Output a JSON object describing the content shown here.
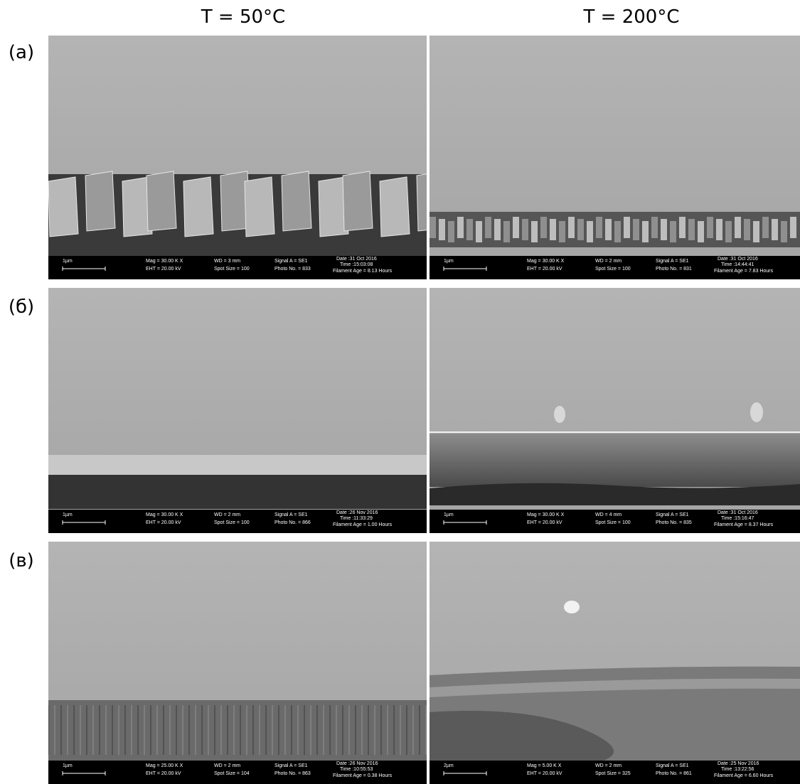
{
  "columns": [
    "T = 50°C",
    "T = 200°C"
  ],
  "rows": [
    "(a)",
    "(б)",
    "(в)"
  ],
  "panels": [
    {
      "scale": "1µm",
      "mag": "Mag = 30.00 K X",
      "eht": "EHT = 20.00 kV",
      "wd": "WD = 3 mm",
      "spot": "Spot Size = 100",
      "signal": "Signal A = SE1",
      "photo": "Photo No. = 833",
      "date": "Date :31 Oct 2016",
      "time": "Time :15:03:08",
      "filament": "Filament Age = 8.13 Hours"
    },
    {
      "scale": "1µm",
      "mag": "Mag = 30.00 K X",
      "eht": "EHT = 20.00 kV",
      "wd": "WD = 2 mm",
      "spot": "Spot Size = 100",
      "signal": "Signal A = SE1",
      "photo": "Photo No. = 831",
      "date": "Date :31 Oct 2016",
      "time": "Time :14:44:41",
      "filament": "Filament Age = 7.83 Hours"
    },
    {
      "scale": "1µm",
      "mag": "Mag = 30.00 K X",
      "eht": "EHT = 20.00 kV",
      "wd": "WD = 2 mm",
      "spot": "Spot Size = 100",
      "signal": "Signal A = SE1",
      "photo": "Photo No. = 866",
      "date": "Date :26 Nov 2016",
      "time": "Time :11:33:29",
      "filament": "Filament Age = 1.00 Hours"
    },
    {
      "scale": "1µm",
      "mag": "Mag = 30.00 K X",
      "eht": "EHT = 20.00 kV",
      "wd": "WD = 4 mm",
      "spot": "Spot Size = 100",
      "signal": "Signal A = SE1",
      "photo": "Photo No. = 835",
      "date": "Date :31 Oct 2016",
      "time": "Time :15:16:47",
      "filament": "Filament Age = 8.37 Hours"
    },
    {
      "scale": "1µm",
      "mag": "Mag = 25.00 K X",
      "eht": "EHT = 20.00 kV",
      "wd": "WD = 2 mm",
      "spot": "Spot Size = 104",
      "signal": "Signal A = SE1",
      "photo": "Photo No. = 863",
      "date": "Date :26 Nov 2016",
      "time": "Time :10:55:53",
      "filament": "Filament Age = 0.38 Hours"
    },
    {
      "scale": "2µm",
      "mag": "Mag = 5.00 K X",
      "eht": "EHT = 20.00 kV",
      "wd": "WD = 2 mm",
      "spot": "Spot Size = 325",
      "signal": "Signal A = SE1",
      "photo": "Photo No. = 861",
      "date": "Date :25 Nov 2016",
      "time": "Time :13:22:56",
      "filament": "Filament Age = 6.60 Hours"
    }
  ]
}
